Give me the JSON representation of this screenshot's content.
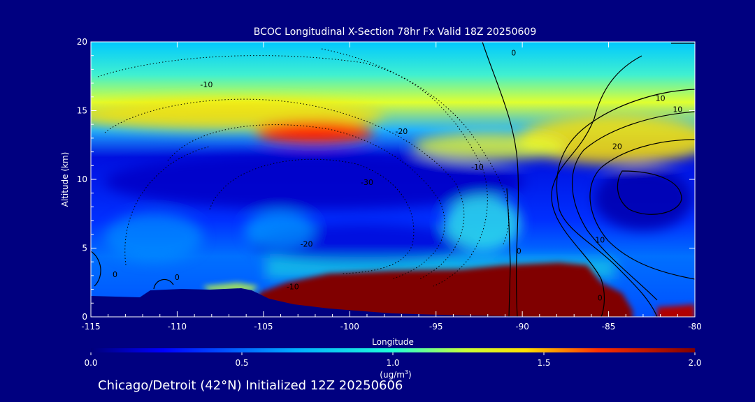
{
  "chart_data": {
    "type": "heatmap",
    "title": "BCOC Longitudinal X-Section 78hr  Fx Valid 18Z 20250609",
    "xlabel": "Longitude",
    "ylabel": "Altitude (km)",
    "xlim": [
      -115,
      -80
    ],
    "ylim": [
      0,
      20
    ],
    "x_ticks": [
      "-115",
      "-110",
      "-105",
      "-100",
      "-95",
      "-90",
      "-85",
      "-80"
    ],
    "x_tick_values": [
      -115,
      -110,
      -105,
      -100,
      -95,
      -90,
      -85,
      -80
    ],
    "y_ticks": [
      "0",
      "5",
      "10",
      "15",
      "20"
    ],
    "y_tick_values": [
      0,
      5,
      10,
      15,
      20
    ],
    "colorbar": {
      "min": 0.0,
      "max": 2.0,
      "ticks": [
        "0.0",
        "0.5",
        "1.0",
        "1.5",
        "2.0"
      ],
      "tick_values": [
        0,
        0.5,
        1.0,
        1.5,
        2.0
      ],
      "unit_label": "(ug/m",
      "unit_sup": "3",
      "unit_close": ")"
    },
    "contour_labels": [
      {
        "text": "-10",
        "lon": -108.3,
        "alt": 16.7
      },
      {
        "text": "-20",
        "lon": -97.0,
        "alt": 13.3
      },
      {
        "text": "-10",
        "lon": -92.6,
        "alt": 10.7
      },
      {
        "text": "-30",
        "lon": -99.0,
        "alt": 9.6
      },
      {
        "text": "-20",
        "lon": -102.5,
        "alt": 5.1
      },
      {
        "text": "-10",
        "lon": -103.3,
        "alt": 2.0
      },
      {
        "text": "0",
        "lon": -113.6,
        "alt": 2.9
      },
      {
        "text": "0",
        "lon": -110.0,
        "alt": 2.7
      },
      {
        "text": "0",
        "lon": -90.2,
        "alt": 4.6
      },
      {
        "text": "0",
        "lon": -85.5,
        "alt": 1.2
      },
      {
        "text": "0",
        "lon": -90.5,
        "alt": 19.0
      },
      {
        "text": "10",
        "lon": -82.0,
        "alt": 15.7
      },
      {
        "text": "10",
        "lon": -81.0,
        "alt": 14.9
      },
      {
        "text": "20",
        "lon": -84.5,
        "alt": 12.2
      },
      {
        "text": "10",
        "lon": -85.5,
        "alt": 5.4
      }
    ]
  },
  "footer": "Chicago/Detroit (42°N) Initialized 12Z 20250606"
}
